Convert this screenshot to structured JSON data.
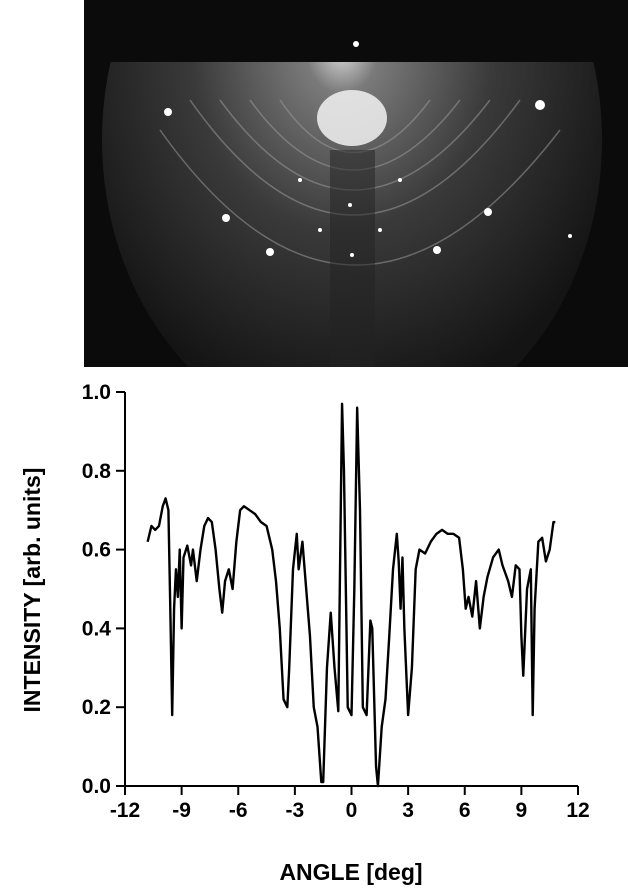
{
  "chart_data": {
    "type": "line",
    "xlabel": "ANGLE [deg]",
    "ylabel": "INTENSITY [arb. units]",
    "color": "#000000",
    "xlim": [
      -12,
      12
    ],
    "xticks": [
      -12,
      -9,
      -6,
      -3,
      0,
      3,
      6,
      9,
      12
    ],
    "ylim": [
      0,
      1
    ],
    "yticks": [
      {
        "value": 0,
        "label": "0.0"
      },
      0.2,
      0.4,
      0.6,
      0.8,
      {
        "value": 1,
        "label": "1.0"
      }
    ],
    "x": [
      -10.8,
      -10.6,
      -10.4,
      -10.2,
      -10.0,
      -9.85,
      -9.7,
      -9.6,
      -9.5,
      -9.4,
      -9.3,
      -9.2,
      -9.1,
      -9.0,
      -8.9,
      -8.7,
      -8.5,
      -8.4,
      -8.2,
      -8.0,
      -7.8,
      -7.6,
      -7.4,
      -7.2,
      -7.0,
      -6.85,
      -6.7,
      -6.5,
      -6.3,
      -6.1,
      -5.9,
      -5.7,
      -5.4,
      -5.1,
      -4.8,
      -4.5,
      -4.2,
      -4.0,
      -3.8,
      -3.6,
      -3.4,
      -3.3,
      -3.1,
      -2.9,
      -2.8,
      -2.6,
      -2.4,
      -2.2,
      -2.0,
      -1.8,
      -1.6,
      -1.5,
      -1.3,
      -1.1,
      -0.9,
      -0.7,
      -0.5,
      -0.4,
      -0.2,
      0,
      0.15,
      0.3,
      0.45,
      0.6,
      0.8,
      1.0,
      1.1,
      1.3,
      1.4,
      1.6,
      1.8,
      2.0,
      2.2,
      2.4,
      2.5,
      2.6,
      2.7,
      2.8,
      3.0,
      3.2,
      3.4,
      3.6,
      3.9,
      4.2,
      4.5,
      4.8,
      5.1,
      5.4,
      5.7,
      5.9,
      6.05,
      6.2,
      6.4,
      6.6,
      6.8,
      7.0,
      7.2,
      7.5,
      7.8,
      8.0,
      8.3,
      8.5,
      8.7,
      8.9,
      9.0,
      9.1,
      9.3,
      9.5,
      9.6,
      9.7,
      9.9,
      10.1,
      10.3,
      10.5,
      10.7,
      10.8
    ],
    "values": [
      0.62,
      0.66,
      0.65,
      0.66,
      0.71,
      0.73,
      0.7,
      0.45,
      0.18,
      0.45,
      0.55,
      0.48,
      0.6,
      0.4,
      0.58,
      0.61,
      0.56,
      0.6,
      0.52,
      0.6,
      0.66,
      0.68,
      0.67,
      0.6,
      0.5,
      0.44,
      0.52,
      0.55,
      0.5,
      0.62,
      0.7,
      0.71,
      0.7,
      0.69,
      0.67,
      0.66,
      0.6,
      0.52,
      0.4,
      0.22,
      0.2,
      0.3,
      0.55,
      0.64,
      0.55,
      0.62,
      0.5,
      0.38,
      0.2,
      0.15,
      0.01,
      0.01,
      0.3,
      0.44,
      0.3,
      0.19,
      0.97,
      0.8,
      0.2,
      0.18,
      0.5,
      0.96,
      0.7,
      0.2,
      0.18,
      0.42,
      0.4,
      0.05,
      0.0,
      0.15,
      0.22,
      0.38,
      0.55,
      0.64,
      0.57,
      0.45,
      0.58,
      0.4,
      0.18,
      0.3,
      0.55,
      0.6,
      0.59,
      0.62,
      0.64,
      0.65,
      0.64,
      0.64,
      0.63,
      0.55,
      0.45,
      0.48,
      0.43,
      0.52,
      0.4,
      0.48,
      0.53,
      0.58,
      0.6,
      0.56,
      0.52,
      0.48,
      0.56,
      0.55,
      0.38,
      0.28,
      0.5,
      0.55,
      0.18,
      0.45,
      0.62,
      0.63,
      0.57,
      0.6,
      0.67,
      0.67
    ]
  }
}
